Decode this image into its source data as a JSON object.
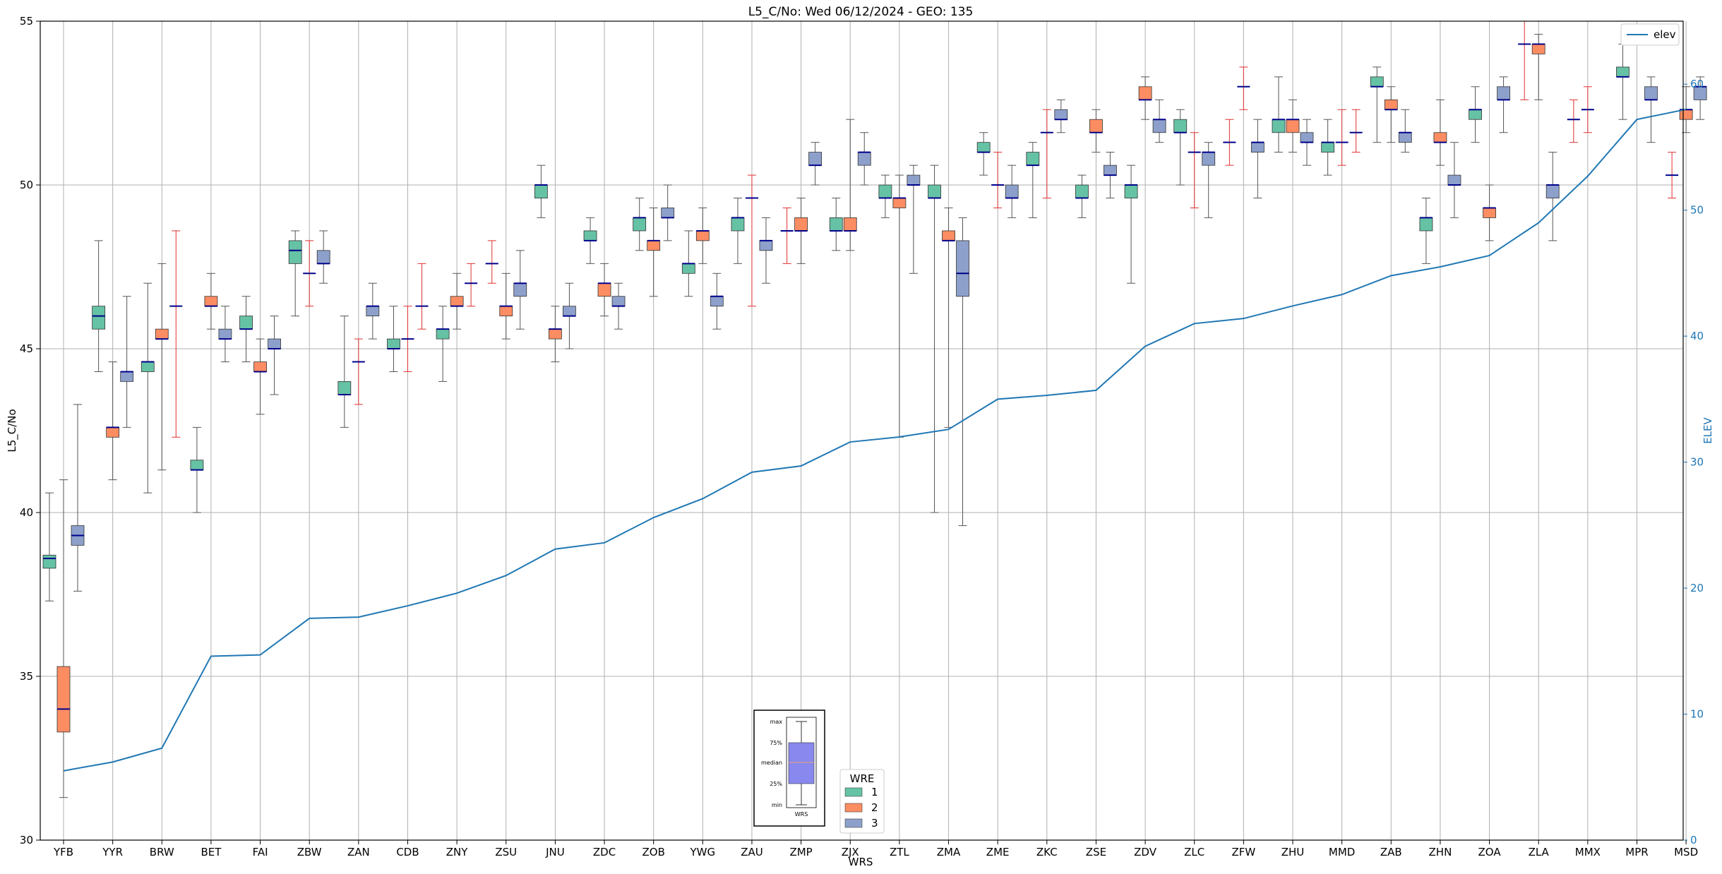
{
  "chart_data": {
    "type": "box",
    "title": "L5_C/No: Wed 06/12/2024 - GEO: 135",
    "xlabel": "WRS",
    "ylabel": "L5_C/No",
    "y2label": "ELEV",
    "ylim": [
      30,
      55
    ],
    "y2lim": [
      0,
      65
    ],
    "yticks": [
      30,
      35,
      40,
      45,
      50,
      55
    ],
    "y2ticks": [
      0,
      10,
      20,
      30,
      40,
      50,
      60
    ],
    "grid": true,
    "categories": [
      "YFB",
      "YYR",
      "BRW",
      "BET",
      "FAI",
      "ZBW",
      "ZAN",
      "CDB",
      "ZNY",
      "ZSU",
      "JNU",
      "ZDC",
      "ZOB",
      "YWG",
      "ZAU",
      "ZMP",
      "ZJX",
      "ZTL",
      "ZMA",
      "ZME",
      "ZKC",
      "ZSE",
      "ZDV",
      "ZLC",
      "ZFW",
      "ZHU",
      "MMD",
      "ZAB",
      "ZHN",
      "ZOA",
      "ZLA",
      "MMX",
      "MPR",
      "MSD"
    ],
    "wre_colors": {
      "1": "#66c2a5",
      "2": "#fc8d62",
      "3": "#8da0cb"
    },
    "median_color": "#00008b",
    "elev_color": "#1f77b4",
    "boxes": [
      {
        "cat": "YFB",
        "wre": 1,
        "min": 37.3,
        "q1": 38.3,
        "med": 38.6,
        "q3": 38.7,
        "max": 40.6
      },
      {
        "cat": "YFB",
        "wre": 2,
        "min": 31.3,
        "q1": 33.3,
        "med": 34.0,
        "q3": 35.3,
        "max": 41.0
      },
      {
        "cat": "YFB",
        "wre": 3,
        "min": 37.6,
        "q1": 39.0,
        "med": 39.3,
        "q3": 39.6,
        "max": 43.3
      },
      {
        "cat": "YYR",
        "wre": 1,
        "min": 44.3,
        "q1": 45.6,
        "med": 46.0,
        "q3": 46.3,
        "max": 48.3
      },
      {
        "cat": "YYR",
        "wre": 2,
        "min": 41.0,
        "q1": 42.3,
        "med": 42.6,
        "q3": 42.6,
        "max": 44.6
      },
      {
        "cat": "YYR",
        "wre": 3,
        "min": 42.6,
        "q1": 44.0,
        "med": 44.3,
        "q3": 44.3,
        "max": 46.6
      },
      {
        "cat": "BRW",
        "wre": 1,
        "min": 40.6,
        "q1": 44.3,
        "med": 44.6,
        "q3": 44.6,
        "max": 47.0
      },
      {
        "cat": "BRW",
        "wre": 2,
        "min": 41.3,
        "q1": 45.3,
        "med": 45.3,
        "q3": 45.6,
        "max": 47.6
      },
      {
        "cat": "BRW",
        "wre": 3,
        "min": 42.3,
        "q1": 46.3,
        "med": 46.3,
        "q3": 46.3,
        "max": 48.6
      },
      {
        "cat": "BET",
        "wre": 1,
        "min": 40.0,
        "q1": 41.3,
        "med": 41.3,
        "q3": 41.6,
        "max": 42.6
      },
      {
        "cat": "BET",
        "wre": 2,
        "min": 45.6,
        "q1": 46.3,
        "med": 46.3,
        "q3": 46.6,
        "max": 47.3
      },
      {
        "cat": "BET",
        "wre": 3,
        "min": 44.6,
        "q1": 45.3,
        "med": 45.3,
        "q3": 45.6,
        "max": 46.3
      },
      {
        "cat": "FAI",
        "wre": 1,
        "min": 44.6,
        "q1": 45.6,
        "med": 45.6,
        "q3": 46.0,
        "max": 46.6
      },
      {
        "cat": "FAI",
        "wre": 2,
        "min": 43.0,
        "q1": 44.3,
        "med": 44.3,
        "q3": 44.6,
        "max": 45.3
      },
      {
        "cat": "FAI",
        "wre": 3,
        "min": 43.6,
        "q1": 45.0,
        "med": 45.0,
        "q3": 45.3,
        "max": 46.0
      },
      {
        "cat": "ZBW",
        "wre": 1,
        "min": 46.0,
        "q1": 47.6,
        "med": 48.0,
        "q3": 48.3,
        "max": 48.6
      },
      {
        "cat": "ZBW",
        "wre": 2,
        "min": 46.3,
        "q1": 47.3,
        "med": 47.3,
        "q3": 47.3,
        "max": 48.3
      },
      {
        "cat": "ZBW",
        "wre": 3,
        "min": 47.0,
        "q1": 47.6,
        "med": 47.6,
        "q3": 48.0,
        "max": 48.6
      },
      {
        "cat": "ZAN",
        "wre": 1,
        "min": 42.6,
        "q1": 43.6,
        "med": 43.6,
        "q3": 44.0,
        "max": 46.0
      },
      {
        "cat": "ZAN",
        "wre": 2,
        "min": 43.3,
        "q1": 44.6,
        "med": 44.6,
        "q3": 44.6,
        "max": 45.3
      },
      {
        "cat": "ZAN",
        "wre": 3,
        "min": 45.3,
        "q1": 46.0,
        "med": 46.3,
        "q3": 46.3,
        "max": 47.0
      },
      {
        "cat": "CDB",
        "wre": 1,
        "min": 44.3,
        "q1": 45.0,
        "med": 45.0,
        "q3": 45.3,
        "max": 46.3
      },
      {
        "cat": "CDB",
        "wre": 2,
        "min": 44.3,
        "q1": 45.3,
        "med": 45.3,
        "q3": 45.3,
        "max": 46.3
      },
      {
        "cat": "CDB",
        "wre": 3,
        "min": 45.6,
        "q1": 46.3,
        "med": 46.3,
        "q3": 46.3,
        "max": 47.6
      },
      {
        "cat": "ZNY",
        "wre": 1,
        "min": 44.0,
        "q1": 45.3,
        "med": 45.6,
        "q3": 45.6,
        "max": 46.3
      },
      {
        "cat": "ZNY",
        "wre": 2,
        "min": 45.6,
        "q1": 46.3,
        "med": 46.3,
        "q3": 46.6,
        "max": 47.3
      },
      {
        "cat": "ZNY",
        "wre": 3,
        "min": 46.3,
        "q1": 47.0,
        "med": 47.0,
        "q3": 47.0,
        "max": 47.6
      },
      {
        "cat": "ZSU",
        "wre": 1,
        "min": 47.0,
        "q1": 47.6,
        "med": 47.6,
        "q3": 47.6,
        "max": 48.3
      },
      {
        "cat": "ZSU",
        "wre": 2,
        "min": 45.3,
        "q1": 46.0,
        "med": 46.3,
        "q3": 46.3,
        "max": 47.3
      },
      {
        "cat": "ZSU",
        "wre": 3,
        "min": 45.6,
        "q1": 46.6,
        "med": 47.0,
        "q3": 47.0,
        "max": 48.0
      },
      {
        "cat": "JNU",
        "wre": 1,
        "min": 49.0,
        "q1": 49.6,
        "med": 50.0,
        "q3": 50.0,
        "max": 50.6
      },
      {
        "cat": "JNU",
        "wre": 2,
        "min": 44.6,
        "q1": 45.3,
        "med": 45.6,
        "q3": 45.6,
        "max": 46.3
      },
      {
        "cat": "JNU",
        "wre": 3,
        "min": 45.0,
        "q1": 46.0,
        "med": 46.0,
        "q3": 46.3,
        "max": 47.0
      },
      {
        "cat": "ZDC",
        "wre": 1,
        "min": 47.6,
        "q1": 48.3,
        "med": 48.3,
        "q3": 48.6,
        "max": 49.0
      },
      {
        "cat": "ZDC",
        "wre": 2,
        "min": 46.0,
        "q1": 46.6,
        "med": 47.0,
        "q3": 47.0,
        "max": 47.6
      },
      {
        "cat": "ZDC",
        "wre": 3,
        "min": 45.6,
        "q1": 46.3,
        "med": 46.3,
        "q3": 46.6,
        "max": 47.0
      },
      {
        "cat": "ZOB",
        "wre": 1,
        "min": 48.0,
        "q1": 48.6,
        "med": 49.0,
        "q3": 49.0,
        "max": 49.6
      },
      {
        "cat": "ZOB",
        "wre": 2,
        "min": 46.6,
        "q1": 48.0,
        "med": 48.3,
        "q3": 48.3,
        "max": 49.3
      },
      {
        "cat": "ZOB",
        "wre": 3,
        "min": 48.3,
        "q1": 49.0,
        "med": 49.0,
        "q3": 49.3,
        "max": 50.0
      },
      {
        "cat": "YWG",
        "wre": 1,
        "min": 46.6,
        "q1": 47.3,
        "med": 47.6,
        "q3": 47.6,
        "max": 48.6
      },
      {
        "cat": "YWG",
        "wre": 2,
        "min": 47.6,
        "q1": 48.3,
        "med": 48.6,
        "q3": 48.6,
        "max": 49.3
      },
      {
        "cat": "YWG",
        "wre": 3,
        "min": 45.6,
        "q1": 46.3,
        "med": 46.6,
        "q3": 46.6,
        "max": 47.3
      },
      {
        "cat": "ZAU",
        "wre": 1,
        "min": 47.6,
        "q1": 48.6,
        "med": 49.0,
        "q3": 49.0,
        "max": 49.6
      },
      {
        "cat": "ZAU",
        "wre": 2,
        "min": 46.3,
        "q1": 49.6,
        "med": 49.6,
        "q3": 49.6,
        "max": 50.3
      },
      {
        "cat": "ZAU",
        "wre": 3,
        "min": 47.0,
        "q1": 48.0,
        "med": 48.3,
        "q3": 48.3,
        "max": 49.0
      },
      {
        "cat": "ZMP",
        "wre": 1,
        "min": 47.6,
        "q1": 48.6,
        "med": 48.6,
        "q3": 48.6,
        "max": 49.3
      },
      {
        "cat": "ZMP",
        "wre": 2,
        "min": 47.6,
        "q1": 48.6,
        "med": 48.6,
        "q3": 49.0,
        "max": 49.6
      },
      {
        "cat": "ZMP",
        "wre": 3,
        "min": 50.0,
        "q1": 50.6,
        "med": 50.6,
        "q3": 51.0,
        "max": 51.3
      },
      {
        "cat": "ZJX",
        "wre": 1,
        "min": 48.0,
        "q1": 48.6,
        "med": 48.6,
        "q3": 49.0,
        "max": 49.6
      },
      {
        "cat": "ZJX",
        "wre": 2,
        "min": 48.0,
        "q1": 48.6,
        "med": 48.6,
        "q3": 49.0,
        "max": 52.0
      },
      {
        "cat": "ZJX",
        "wre": 3,
        "min": 50.0,
        "q1": 50.6,
        "med": 51.0,
        "q3": 51.0,
        "max": 51.6
      },
      {
        "cat": "ZTL",
        "wre": 1,
        "min": 49.0,
        "q1": 49.6,
        "med": 49.6,
        "q3": 50.0,
        "max": 50.3
      },
      {
        "cat": "ZTL",
        "wre": 2,
        "min": 42.3,
        "q1": 49.3,
        "med": 49.6,
        "q3": 49.6,
        "max": 50.3
      },
      {
        "cat": "ZTL",
        "wre": 3,
        "min": 47.3,
        "q1": 50.0,
        "med": 50.0,
        "q3": 50.3,
        "max": 50.6
      },
      {
        "cat": "ZMA",
        "wre": 1,
        "min": 40.0,
        "q1": 49.6,
        "med": 49.6,
        "q3": 50.0,
        "max": 50.6
      },
      {
        "cat": "ZMA",
        "wre": 2,
        "min": 42.6,
        "q1": 48.3,
        "med": 48.3,
        "q3": 48.6,
        "max": 49.3
      },
      {
        "cat": "ZMA",
        "wre": 3,
        "min": 39.6,
        "q1": 46.6,
        "med": 47.3,
        "q3": 48.3,
        "max": 49.0
      },
      {
        "cat": "ZME",
        "wre": 1,
        "min": 50.3,
        "q1": 51.0,
        "med": 51.0,
        "q3": 51.3,
        "max": 51.6
      },
      {
        "cat": "ZME",
        "wre": 2,
        "min": 49.3,
        "q1": 50.0,
        "med": 50.0,
        "q3": 50.0,
        "max": 51.0
      },
      {
        "cat": "ZME",
        "wre": 3,
        "min": 49.0,
        "q1": 49.6,
        "med": 49.6,
        "q3": 50.0,
        "max": 50.6
      },
      {
        "cat": "ZKC",
        "wre": 1,
        "min": 49.0,
        "q1": 50.6,
        "med": 50.6,
        "q3": 51.0,
        "max": 51.3
      },
      {
        "cat": "ZKC",
        "wre": 2,
        "min": 49.6,
        "q1": 51.6,
        "med": 51.6,
        "q3": 51.6,
        "max": 52.3
      },
      {
        "cat": "ZKC",
        "wre": 3,
        "min": 51.6,
        "q1": 52.0,
        "med": 52.0,
        "q3": 52.3,
        "max": 52.6
      },
      {
        "cat": "ZSE",
        "wre": 1,
        "min": 49.0,
        "q1": 49.6,
        "med": 49.6,
        "q3": 50.0,
        "max": 50.3
      },
      {
        "cat": "ZSE",
        "wre": 2,
        "min": 51.0,
        "q1": 51.6,
        "med": 51.6,
        "q3": 52.0,
        "max": 52.3
      },
      {
        "cat": "ZSE",
        "wre": 3,
        "min": 49.6,
        "q1": 50.3,
        "med": 50.3,
        "q3": 50.6,
        "max": 51.0
      },
      {
        "cat": "ZDV",
        "wre": 1,
        "min": 47.0,
        "q1": 49.6,
        "med": 50.0,
        "q3": 50.0,
        "max": 50.6
      },
      {
        "cat": "ZDV",
        "wre": 2,
        "min": 52.0,
        "q1": 52.6,
        "med": 52.6,
        "q3": 53.0,
        "max": 53.3
      },
      {
        "cat": "ZDV",
        "wre": 3,
        "min": 51.3,
        "q1": 51.6,
        "med": 52.0,
        "q3": 52.0,
        "max": 52.6
      },
      {
        "cat": "ZLC",
        "wre": 1,
        "min": 50.0,
        "q1": 51.6,
        "med": 51.6,
        "q3": 52.0,
        "max": 52.3
      },
      {
        "cat": "ZLC",
        "wre": 2,
        "min": 49.3,
        "q1": 51.0,
        "med": 51.0,
        "q3": 51.0,
        "max": 51.6
      },
      {
        "cat": "ZLC",
        "wre": 3,
        "min": 49.0,
        "q1": 50.6,
        "med": 51.0,
        "q3": 51.0,
        "max": 51.3
      },
      {
        "cat": "ZFW",
        "wre": 1,
        "min": 50.6,
        "q1": 51.3,
        "med": 51.3,
        "q3": 51.3,
        "max": 52.0
      },
      {
        "cat": "ZFW",
        "wre": 2,
        "min": 52.3,
        "q1": 53.0,
        "med": 53.0,
        "q3": 53.0,
        "max": 53.6
      },
      {
        "cat": "ZFW",
        "wre": 3,
        "min": 49.6,
        "q1": 51.0,
        "med": 51.3,
        "q3": 51.3,
        "max": 52.0
      },
      {
        "cat": "ZHU",
        "wre": 1,
        "min": 51.0,
        "q1": 51.6,
        "med": 52.0,
        "q3": 52.0,
        "max": 53.3
      },
      {
        "cat": "ZHU",
        "wre": 2,
        "min": 51.0,
        "q1": 51.6,
        "med": 52.0,
        "q3": 52.0,
        "max": 52.6
      },
      {
        "cat": "ZHU",
        "wre": 3,
        "min": 50.6,
        "q1": 51.3,
        "med": 51.3,
        "q3": 51.6,
        "max": 52.0
      },
      {
        "cat": "MMD",
        "wre": 1,
        "min": 50.3,
        "q1": 51.0,
        "med": 51.3,
        "q3": 51.3,
        "max": 52.0
      },
      {
        "cat": "MMD",
        "wre": 2,
        "min": 50.6,
        "q1": 51.3,
        "med": 51.3,
        "q3": 51.3,
        "max": 52.3
      },
      {
        "cat": "MMD",
        "wre": 3,
        "min": 51.0,
        "q1": 51.6,
        "med": 51.6,
        "q3": 51.6,
        "max": 52.3
      },
      {
        "cat": "ZAB",
        "wre": 1,
        "min": 51.3,
        "q1": 53.0,
        "med": 53.0,
        "q3": 53.3,
        "max": 53.6
      },
      {
        "cat": "ZAB",
        "wre": 2,
        "min": 51.3,
        "q1": 52.3,
        "med": 52.3,
        "q3": 52.6,
        "max": 53.0
      },
      {
        "cat": "ZAB",
        "wre": 3,
        "min": 51.0,
        "q1": 51.3,
        "med": 51.6,
        "q3": 51.6,
        "max": 52.3
      },
      {
        "cat": "ZHN",
        "wre": 1,
        "min": 47.6,
        "q1": 48.6,
        "med": 49.0,
        "q3": 49.0,
        "max": 49.6
      },
      {
        "cat": "ZHN",
        "wre": 2,
        "min": 50.6,
        "q1": 51.3,
        "med": 51.3,
        "q3": 51.6,
        "max": 52.6
      },
      {
        "cat": "ZHN",
        "wre": 3,
        "min": 49.0,
        "q1": 50.0,
        "med": 50.0,
        "q3": 50.3,
        "max": 51.3
      },
      {
        "cat": "ZOA",
        "wre": 1,
        "min": 51.3,
        "q1": 52.0,
        "med": 52.3,
        "q3": 52.3,
        "max": 53.0
      },
      {
        "cat": "ZOA",
        "wre": 2,
        "min": 48.3,
        "q1": 49.0,
        "med": 49.3,
        "q3": 49.3,
        "max": 50.0
      },
      {
        "cat": "ZOA",
        "wre": 3,
        "min": 51.6,
        "q1": 52.6,
        "med": 52.6,
        "q3": 53.0,
        "max": 53.3
      },
      {
        "cat": "ZLA",
        "wre": 1,
        "min": 52.6,
        "q1": 54.3,
        "med": 54.3,
        "q3": 54.3,
        "max": 55.0
      },
      {
        "cat": "ZLA",
        "wre": 2,
        "min": 52.6,
        "q1": 54.0,
        "med": 54.3,
        "q3": 54.3,
        "max": 54.6
      },
      {
        "cat": "ZLA",
        "wre": 3,
        "min": 48.3,
        "q1": 49.6,
        "med": 50.0,
        "q3": 50.0,
        "max": 51.0
      },
      {
        "cat": "MMX",
        "wre": 1,
        "min": 51.3,
        "q1": 52.0,
        "med": 52.0,
        "q3": 52.0,
        "max": 52.6
      },
      {
        "cat": "MMX",
        "wre": 2,
        "min": 51.6,
        "q1": 52.3,
        "med": 52.3,
        "q3": 52.3,
        "max": 53.0
      },
      {
        "cat": "MPR",
        "wre": 1,
        "min": 52.0,
        "q1": 53.3,
        "med": 53.3,
        "q3": 53.6,
        "max": 54.3
      },
      {
        "cat": "MPR",
        "wre": 3,
        "min": 51.3,
        "q1": 52.6,
        "med": 52.6,
        "q3": 53.0,
        "max": 53.3
      },
      {
        "cat": "MSD",
        "wre": 1,
        "min": 49.6,
        "q1": 50.3,
        "med": 50.3,
        "q3": 50.3,
        "max": 51.0
      },
      {
        "cat": "MSD",
        "wre": 2,
        "min": 51.6,
        "q1": 52.0,
        "med": 52.3,
        "q3": 52.3,
        "max": 53.0
      },
      {
        "cat": "MSD",
        "wre": 3,
        "min": 52.0,
        "q1": 52.6,
        "med": 53.0,
        "q3": 53.0,
        "max": 53.3
      }
    ],
    "elev_series": {
      "name": "elev",
      "values": [
        5.5,
        6.2,
        7.3,
        14.6,
        14.7,
        17.6,
        17.7,
        18.6,
        19.6,
        21.0,
        23.1,
        23.6,
        25.6,
        27.1,
        29.2,
        29.7,
        31.6,
        32.0,
        32.6,
        35.0,
        35.3,
        35.7,
        39.2,
        41.0,
        41.4,
        42.4,
        43.3,
        44.8,
        45.5,
        46.4,
        49.0,
        52.7,
        57.2,
        58.0
      ]
    },
    "legend_elev": {
      "label": "elev",
      "position": "top-right"
    },
    "legend_wre": {
      "title": "WRE",
      "entries": [
        "1",
        "2",
        "3"
      ],
      "position": "bottom-center"
    },
    "inset_key": {
      "labels": [
        "max",
        "75%",
        "median",
        "25%",
        "min"
      ],
      "caption": "WRS"
    }
  }
}
